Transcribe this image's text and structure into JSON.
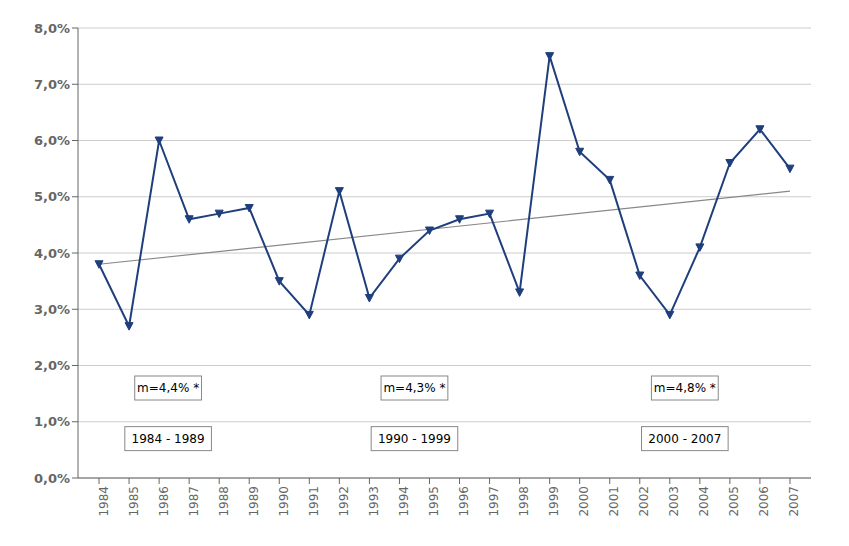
{
  "chart_data": {
    "type": "line",
    "xlim": [
      1983.3,
      2007.7
    ],
    "xticks": [
      1984,
      1985,
      1986,
      1987,
      1988,
      1989,
      1990,
      1991,
      1992,
      1993,
      1994,
      1995,
      1996,
      1997,
      1998,
      1999,
      2000,
      2001,
      2002,
      2003,
      2004,
      2005,
      2006,
      2007
    ],
    "ylim": [
      0.0,
      0.08
    ],
    "yticks": [
      {
        "value": 0.0,
        "label": "0,0%"
      },
      {
        "value": 0.01,
        "label": "1,0%"
      },
      {
        "value": 0.02,
        "label": "2,0%"
      },
      {
        "value": 0.03,
        "label": "3,0%"
      },
      {
        "value": 0.04,
        "label": "4,0%"
      },
      {
        "value": 0.05,
        "label": "5,0%"
      },
      {
        "value": 0.06,
        "label": "6,0%"
      },
      {
        "value": 0.07,
        "label": "7,0%"
      },
      {
        "value": 0.08,
        "label": "8,0%"
      }
    ],
    "grid": "y",
    "series": [
      {
        "color": "#888888",
        "line_style": "solid",
        "marker": "none",
        "x": [
          1984,
          2007
        ],
        "values": [
          0.038,
          0.051
        ]
      },
      {
        "color": "#1F3E7C",
        "line_style": "solid",
        "marker": "triangle_down",
        "x": [
          1984,
          1985,
          1986,
          1987,
          1988,
          1989,
          1990,
          1991,
          1992,
          1993,
          1994,
          1995,
          1996,
          1997,
          1998,
          1999,
          2000,
          2001,
          2002,
          2003,
          2004,
          2005,
          2006,
          2007
        ],
        "values": [
          0.038,
          0.027,
          0.06,
          0.046,
          0.047,
          0.048,
          0.035,
          0.029,
          0.051,
          0.032,
          0.039,
          0.044,
          0.046,
          0.047,
          0.033,
          0.075,
          0.058,
          0.053,
          0.036,
          0.029,
          0.041,
          0.056,
          0.062,
          0.055
        ]
      }
    ],
    "annotations": [
      {
        "text": "m=4,4% *",
        "x": 1986.3,
        "y": 0.016,
        "color": "#888888"
      },
      {
        "text": "1984 - 1989",
        "x": 1986.3,
        "y": 0.007,
        "color": "#888888"
      },
      {
        "text": "m=4,3% *",
        "x": 1994.5,
        "y": 0.016,
        "color": "#888888"
      },
      {
        "text": "1990 - 1999",
        "x": 1994.5,
        "y": 0.007,
        "color": "#888888"
      },
      {
        "text": "m=4,8% *",
        "x": 2003.5,
        "y": 0.016,
        "color": "#888888"
      },
      {
        "text": "2000 - 2007",
        "x": 2003.5,
        "y": 0.007,
        "color": "#888888"
      }
    ]
  }
}
